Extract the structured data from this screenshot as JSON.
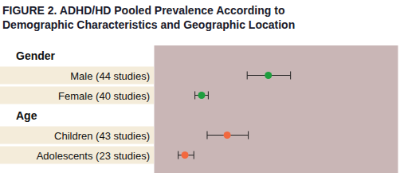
{
  "chart_data": {
    "type": "forest",
    "title": "FIGURE 2. ADHD/HD Pooled Prevalence According to Demographic Characteristics and Geographic Location",
    "xlim": [
      0,
      22
    ],
    "xticks": [
      0,
      5,
      10,
      15,
      20
    ],
    "grid": true,
    "tick_labels": false,
    "groups": [
      {
        "name": "Gender",
        "color": "#1e9e3e",
        "categories": [
          "Male (44 studies)",
          "Female (40 studies)"
        ],
        "values": [
          10.3,
          4.3
        ],
        "lower": [
          8.4,
          3.7
        ],
        "upper": [
          12.3,
          4.9
        ]
      },
      {
        "name": "Age",
        "color": "#f2693f",
        "categories": [
          "Children (43 studies)",
          "Adolescents (23 studies)"
        ],
        "values": [
          6.6,
          2.8
        ],
        "lower": [
          4.8,
          2.2
        ],
        "upper": [
          8.5,
          3.6
        ]
      }
    ]
  }
}
